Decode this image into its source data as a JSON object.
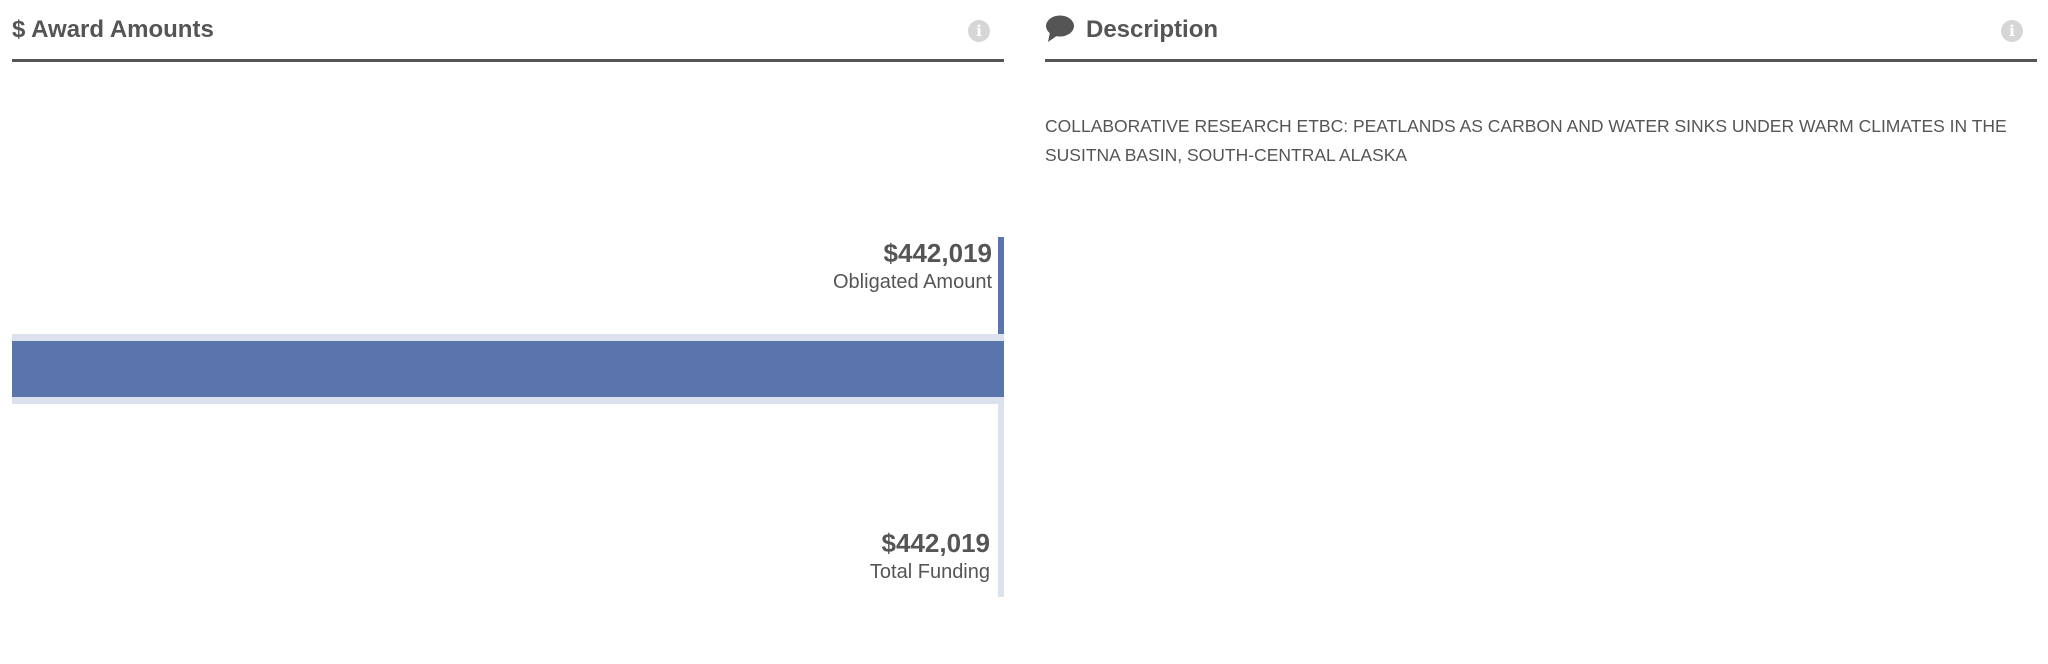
{
  "award_amounts": {
    "title": "$ Award Amounts",
    "info_icon": "info-icon",
    "obligated": {
      "value": "$442,019",
      "label": "Obligated Amount",
      "amount": 442019
    },
    "total_funding": {
      "value": "$442,019",
      "label": "Total Funding",
      "amount": 442019
    },
    "colors": {
      "obligated": "#5a75ab",
      "total": "#dce1ee"
    }
  },
  "description": {
    "title": "Description",
    "icon": "comment-icon",
    "info_icon": "info-icon",
    "text": "COLLABORATIVE RESEARCH ETBC: PEATLANDS AS CARBON AND WATER SINKS UNDER WARM CLIMATES IN THE SUSITNA BASIN, SOUTH-CENTRAL ALASKA"
  }
}
